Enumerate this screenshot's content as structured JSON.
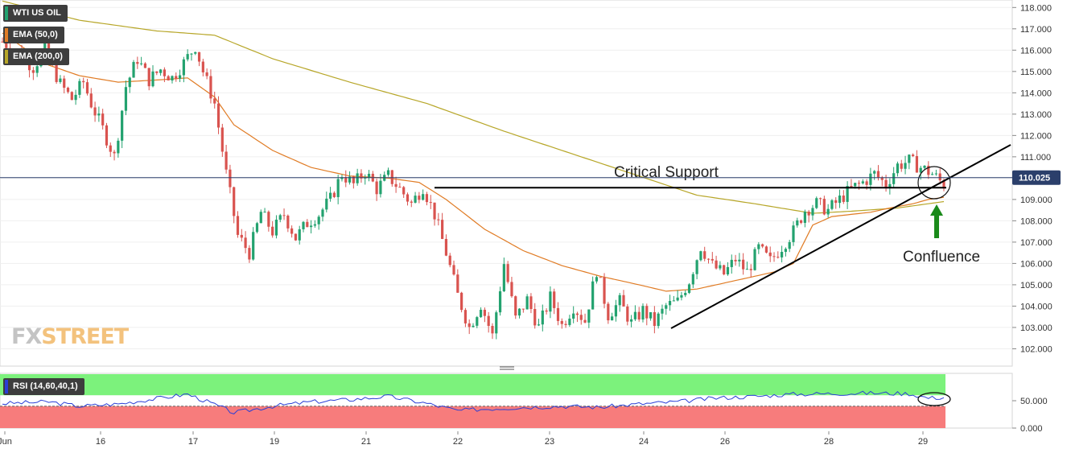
{
  "legend": {
    "symbol": "WTI US OIL",
    "ema50": "EMA (50,0)",
    "ema200": "EMA (200,0)",
    "rsi": "RSI (14,60,40,1)"
  },
  "logo": {
    "fx": "FX",
    "street": "STREET"
  },
  "colors": {
    "up": "#23a26f",
    "down": "#d9534f",
    "ema50": "#e07b24",
    "ema200": "#b7a628",
    "price_tag": "#2b3f6b",
    "rsi_line": "#2a3fd6",
    "rsi_upper": "#7cf27c",
    "rsi_lower": "#f77c7c",
    "arrow": "#1a8a1a"
  },
  "chart_data": [
    {
      "type": "candlestick",
      "title": "WTI US OIL",
      "ylim": [
        101.3,
        118.2
      ],
      "yticks": [
        "118.000",
        "117.000",
        "116.000",
        "115.000",
        "114.000",
        "113.000",
        "112.000",
        "111.000",
        "110.000",
        "109.000",
        "108.000",
        "107.000",
        "106.000",
        "105.000",
        "104.000",
        "103.000",
        "102.000"
      ],
      "xticks": [
        "Jun",
        "16",
        "17",
        "19",
        "21",
        "22",
        "23",
        "24",
        "26",
        "28",
        "29"
      ],
      "last_price": "110.025",
      "annotations": {
        "support_label": "Critical Support",
        "confluence_label": "Confluence",
        "support_level": 109.55
      },
      "price_path": [
        [
          0,
          116.4
        ],
        [
          4,
          115.9
        ],
        [
          8,
          115.2
        ],
        [
          11,
          116.0
        ],
        [
          15,
          114.4
        ],
        [
          18,
          113.7
        ],
        [
          21,
          114.5
        ],
        [
          23,
          113.5
        ],
        [
          26,
          112.3
        ],
        [
          29,
          111.0
        ],
        [
          32,
          114.3
        ],
        [
          35,
          115.6
        ],
        [
          38,
          114.6
        ],
        [
          41,
          115.1
        ],
        [
          44,
          114.7
        ],
        [
          47,
          115.4
        ],
        [
          50,
          116.2
        ],
        [
          52,
          115.0
        ],
        [
          55,
          113.5
        ],
        [
          58,
          110.2
        ],
        [
          61,
          107.3
        ],
        [
          64,
          106.5
        ],
        [
          67,
          108.4
        ],
        [
          70,
          107.5
        ],
        [
          73,
          108.3
        ],
        [
          76,
          107.2
        ],
        [
          79,
          107.9
        ],
        [
          82,
          108.3
        ],
        [
          85,
          109.0
        ],
        [
          88,
          110.2
        ],
        [
          91,
          109.7
        ],
        [
          94,
          110.3
        ],
        [
          97,
          109.5
        ],
        [
          100,
          110.1
        ],
        [
          103,
          109.5
        ],
        [
          106,
          108.8
        ],
        [
          109,
          109.6
        ],
        [
          112,
          108.3
        ],
        [
          115,
          106.5
        ],
        [
          118,
          104.5
        ],
        [
          121,
          103.0
        ],
        [
          124,
          104.1
        ],
        [
          127,
          102.6
        ],
        [
          130,
          106.0
        ],
        [
          133,
          103.4
        ],
        [
          136,
          104.3
        ],
        [
          139,
          103.0
        ],
        [
          142,
          104.4
        ],
        [
          145,
          103.1
        ],
        [
          148,
          104.0
        ],
        [
          151,
          103.3
        ],
        [
          154,
          105.7
        ],
        [
          157,
          103.6
        ],
        [
          160,
          104.2
        ],
        [
          163,
          103.2
        ],
        [
          166,
          103.8
        ],
        [
          169,
          103.2
        ],
        [
          172,
          104.0
        ],
        [
          175,
          104.2
        ],
        [
          178,
          105.2
        ],
        [
          181,
          106.8
        ],
        [
          184,
          105.9
        ],
        [
          187,
          105.5
        ],
        [
          190,
          106.2
        ],
        [
          193,
          105.6
        ],
        [
          196,
          106.7
        ],
        [
          199,
          106.1
        ],
        [
          202,
          106.8
        ],
        [
          205,
          107.5
        ],
        [
          208,
          108.5
        ],
        [
          211,
          108.8
        ],
        [
          214,
          108.5
        ],
        [
          217,
          109.0
        ],
        [
          220,
          109.5
        ],
        [
          223,
          109.8
        ],
        [
          226,
          110.2
        ],
        [
          229,
          109.7
        ],
        [
          232,
          110.6
        ],
        [
          235,
          110.8
        ],
        [
          238,
          110.5
        ],
        [
          241,
          110.2
        ],
        [
          244,
          109.7
        ]
      ],
      "ema50": [
        [
          0,
          116.8
        ],
        [
          12,
          115.3
        ],
        [
          20,
          114.8
        ],
        [
          30,
          114.5
        ],
        [
          40,
          114.6
        ],
        [
          48,
          114.7
        ],
        [
          55,
          113.8
        ],
        [
          60,
          112.5
        ],
        [
          70,
          111.3
        ],
        [
          80,
          110.5
        ],
        [
          90,
          110.1
        ],
        [
          100,
          110.0
        ],
        [
          108,
          109.8
        ],
        [
          115,
          109.0
        ],
        [
          125,
          107.6
        ],
        [
          135,
          106.6
        ],
        [
          145,
          105.9
        ],
        [
          155,
          105.4
        ],
        [
          165,
          105.0
        ],
        [
          172,
          104.7
        ],
        [
          180,
          104.8
        ],
        [
          190,
          105.2
        ],
        [
          200,
          105.6
        ],
        [
          205,
          106.0
        ],
        [
          210,
          107.8
        ],
        [
          215,
          108.2
        ],
        [
          220,
          108.3
        ],
        [
          225,
          108.4
        ],
        [
          230,
          108.6
        ],
        [
          236,
          108.8
        ],
        [
          240,
          109.0
        ],
        [
          244,
          109.1
        ]
      ],
      "ema200": [
        [
          0,
          118.3
        ],
        [
          20,
          117.4
        ],
        [
          40,
          116.9
        ],
        [
          55,
          116.7
        ],
        [
          70,
          115.6
        ],
        [
          90,
          114.5
        ],
        [
          110,
          113.5
        ],
        [
          130,
          112.2
        ],
        [
          150,
          111.0
        ],
        [
          165,
          110.1
        ],
        [
          180,
          109.2
        ],
        [
          195,
          108.8
        ],
        [
          210,
          108.35
        ],
        [
          220,
          108.45
        ],
        [
          232,
          108.6
        ],
        [
          244,
          108.9
        ]
      ]
    },
    {
      "type": "line",
      "title": "RSI (14,60,40,1)",
      "ylim": [
        0,
        100
      ],
      "yticks": [
        "50.000",
        "0.000"
      ],
      "upper_band": 60,
      "lower_band": 40,
      "rsi_path": [
        [
          0,
          45
        ],
        [
          12,
          48
        ],
        [
          20,
          40
        ],
        [
          30,
          44
        ],
        [
          40,
          54
        ],
        [
          48,
          62
        ],
        [
          55,
          43
        ],
        [
          60,
          28
        ],
        [
          70,
          40
        ],
        [
          80,
          48
        ],
        [
          90,
          52
        ],
        [
          100,
          58
        ],
        [
          110,
          45
        ],
        [
          118,
          32
        ],
        [
          125,
          35
        ],
        [
          135,
          38
        ],
        [
          145,
          40
        ],
        [
          155,
          38
        ],
        [
          165,
          44
        ],
        [
          175,
          48
        ],
        [
          185,
          55
        ],
        [
          195,
          58
        ],
        [
          205,
          62
        ],
        [
          215,
          63
        ],
        [
          225,
          64
        ],
        [
          235,
          63
        ],
        [
          240,
          55
        ],
        [
          244,
          56
        ]
      ]
    }
  ]
}
